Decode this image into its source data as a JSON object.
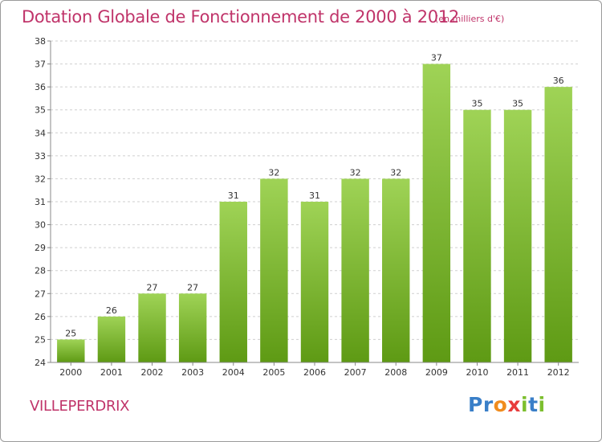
{
  "title": "Dotation Globale de Fonctionnement de 2000 à 2012",
  "unit": "(en milliers d'€)",
  "commune": "VILLEPERDRIX",
  "logo": {
    "letters": [
      {
        "char": "P",
        "color": "#3a7fc8"
      },
      {
        "char": "r",
        "color": "#3a7fc8"
      },
      {
        "char": "o",
        "color": "#f08c1e"
      },
      {
        "char": "x",
        "color": "#e83c3c"
      },
      {
        "char": "i",
        "color": "#7cbf2e"
      },
      {
        "char": "t",
        "color": "#3a7fc8"
      },
      {
        "char": "i",
        "color": "#7cbf2e"
      }
    ]
  },
  "colors": {
    "accent": "#c0346a",
    "bar_top": "#9fd356",
    "bar_bottom": "#5e9a14",
    "grid": "#cfcfcf",
    "axis": "#888888"
  },
  "chart_data": {
    "type": "bar",
    "categories": [
      "2000",
      "2001",
      "2002",
      "2003",
      "2004",
      "2005",
      "2006",
      "2007",
      "2008",
      "2009",
      "2010",
      "2011",
      "2012"
    ],
    "values": [
      25,
      26,
      27,
      27,
      31,
      32,
      31,
      32,
      32,
      37,
      35,
      35,
      36
    ],
    "ylim": [
      24,
      38
    ],
    "yticks": [
      24,
      25,
      26,
      27,
      28,
      29,
      30,
      31,
      32,
      33,
      34,
      35,
      36,
      37,
      38
    ],
    "grid": true,
    "grid_style": "dashed",
    "xlabel": "",
    "ylabel": ""
  }
}
